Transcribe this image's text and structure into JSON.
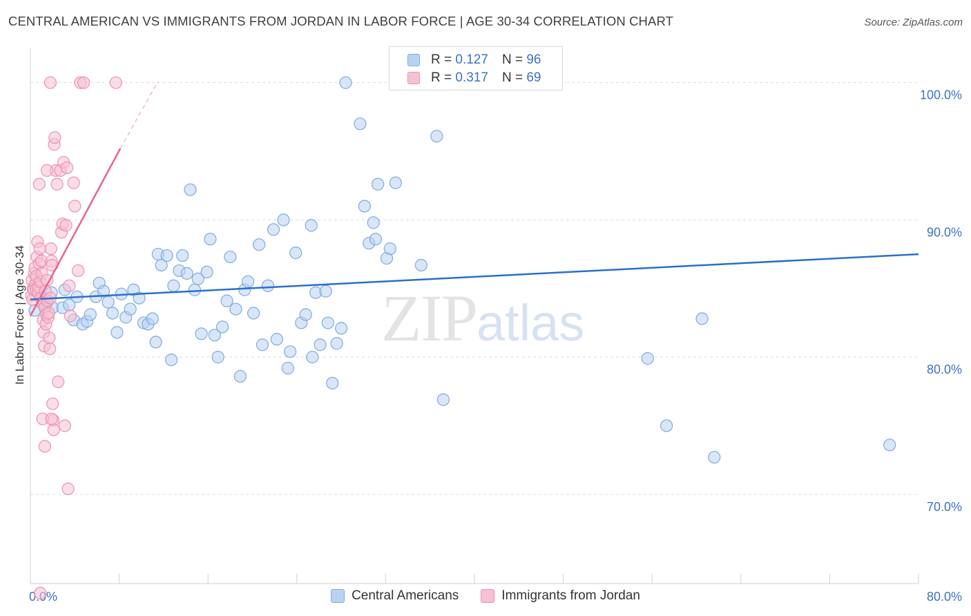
{
  "title": "CENTRAL AMERICAN VS IMMIGRANTS FROM JORDAN IN LABOR FORCE | AGE 30-34 CORRELATION CHART",
  "source": "Source: ZipAtlas.com",
  "watermark": {
    "zip": "ZIP",
    "atlas": "atlas"
  },
  "legend": {
    "rows": [
      {
        "r_label": "R =",
        "r_value": "0.127",
        "n_label": "N =",
        "n_value": "96"
      },
      {
        "r_label": "R =",
        "r_value": "0.317",
        "n_label": "N =",
        "n_value": "69"
      }
    ]
  },
  "colors": {
    "blue_fill": "#b8d2f2",
    "blue_stroke": "#7eaae0",
    "blue_line": "#2a6fcc",
    "pink_fill": "#f6c1d2",
    "pink_stroke": "#ee90b0",
    "pink_line": "#e8628f",
    "tick_text": "#3a72c4",
    "grid": "#dcdcdc"
  },
  "chart_data": {
    "type": "scatter",
    "title": "CENTRAL AMERICAN VS IMMIGRANTS FROM JORDAN IN LABOR FORCE | AGE 30-34 CORRELATION CHART",
    "xlabel": "",
    "ylabel": "In Labor Force | Age 30-34",
    "xlim": [
      0,
      80
    ],
    "ylim": [
      63.5,
      102.5
    ],
    "x_ticks": [
      {
        "value": 0,
        "label": "0.0%"
      },
      {
        "value": 80,
        "label": "80.0%"
      }
    ],
    "y_ticks": [
      {
        "value": 100,
        "label": "100.0%"
      },
      {
        "value": 90,
        "label": "90.0%"
      },
      {
        "value": 80,
        "label": "80.0%"
      },
      {
        "value": 70,
        "label": "70.0%"
      }
    ],
    "grid": true,
    "legend_position": "top-center",
    "series": [
      {
        "name": "Central Americans",
        "color": "#b8d2f2",
        "trendline": {
          "x": [
            0,
            80
          ],
          "y": [
            84.2,
            87.5
          ]
        },
        "points": [
          [
            0.4,
            83.4
          ],
          [
            0.8,
            84.5
          ],
          [
            1.1,
            84.0
          ],
          [
            1.3,
            83.7
          ],
          [
            1.5,
            84.0
          ],
          [
            1.9,
            84.7
          ],
          [
            2.0,
            83.6
          ],
          [
            2.9,
            83.6
          ],
          [
            3.1,
            84.9
          ],
          [
            3.5,
            83.8
          ],
          [
            3.9,
            82.7
          ],
          [
            4.2,
            84.4
          ],
          [
            4.7,
            82.4
          ],
          [
            5.1,
            82.6
          ],
          [
            5.4,
            83.1
          ],
          [
            5.9,
            84.4
          ],
          [
            6.2,
            85.4
          ],
          [
            6.6,
            84.8
          ],
          [
            7.0,
            84.0
          ],
          [
            7.4,
            83.2
          ],
          [
            7.8,
            81.8
          ],
          [
            8.2,
            84.6
          ],
          [
            8.6,
            82.9
          ],
          [
            9.0,
            83.5
          ],
          [
            9.3,
            84.9
          ],
          [
            9.8,
            84.3
          ],
          [
            10.2,
            82.5
          ],
          [
            10.6,
            82.4
          ],
          [
            11.0,
            82.8
          ],
          [
            11.3,
            81.1
          ],
          [
            11.5,
            87.5
          ],
          [
            11.8,
            86.7
          ],
          [
            12.3,
            87.4
          ],
          [
            12.7,
            79.8
          ],
          [
            12.9,
            85.2
          ],
          [
            13.4,
            86.3
          ],
          [
            13.7,
            87.4
          ],
          [
            14.1,
            86.1
          ],
          [
            14.4,
            92.2
          ],
          [
            14.8,
            84.9
          ],
          [
            15.1,
            85.7
          ],
          [
            15.4,
            81.7
          ],
          [
            15.9,
            86.2
          ],
          [
            16.2,
            88.6
          ],
          [
            16.6,
            81.6
          ],
          [
            16.9,
            80.0
          ],
          [
            17.3,
            82.2
          ],
          [
            17.7,
            84.1
          ],
          [
            18.0,
            87.3
          ],
          [
            18.5,
            83.5
          ],
          [
            18.9,
            78.6
          ],
          [
            19.3,
            84.9
          ],
          [
            19.6,
            85.5
          ],
          [
            20.1,
            83.2
          ],
          [
            20.6,
            88.2
          ],
          [
            20.9,
            80.9
          ],
          [
            21.4,
            85.2
          ],
          [
            21.9,
            89.3
          ],
          [
            22.2,
            81.3
          ],
          [
            22.8,
            90.0
          ],
          [
            23.2,
            79.2
          ],
          [
            23.4,
            80.4
          ],
          [
            23.9,
            87.6
          ],
          [
            24.4,
            82.5
          ],
          [
            24.8,
            83.1
          ],
          [
            25.3,
            89.6
          ],
          [
            25.4,
            80.0
          ],
          [
            25.7,
            84.7
          ],
          [
            26.1,
            80.9
          ],
          [
            26.6,
            84.8
          ],
          [
            26.8,
            82.5
          ],
          [
            27.2,
            78.1
          ],
          [
            27.6,
            81.0
          ],
          [
            28.0,
            82.1
          ],
          [
            28.4,
            100.0
          ],
          [
            29.7,
            97.0
          ],
          [
            30.1,
            91.0
          ],
          [
            30.5,
            88.3
          ],
          [
            30.9,
            89.8
          ],
          [
            31.1,
            88.6
          ],
          [
            31.3,
            92.6
          ],
          [
            32.1,
            87.2
          ],
          [
            32.4,
            87.9
          ],
          [
            32.9,
            92.7
          ],
          [
            34.6,
            100.0
          ],
          [
            35.2,
            86.7
          ],
          [
            36.6,
            96.1
          ],
          [
            37.2,
            76.9
          ],
          [
            38.4,
            100.0
          ],
          [
            41.3,
            100.0
          ],
          [
            55.6,
            79.9
          ],
          [
            57.3,
            75.0
          ],
          [
            60.5,
            82.8
          ],
          [
            61.6,
            72.7
          ],
          [
            77.4,
            73.6
          ]
        ]
      },
      {
        "name": "Immigrants from Jordan",
        "color": "#f6c1d2",
        "trendline": {
          "x": [
            0,
            8.1
          ],
          "y": [
            83.0,
            95.2
          ]
        },
        "trendline_dashed": {
          "x": [
            8.1,
            11.5
          ],
          "y": [
            95.2,
            100.1
          ]
        },
        "points": [
          [
            0.1,
            84.5
          ],
          [
            0.15,
            85.6
          ],
          [
            0.2,
            84.2
          ],
          [
            0.25,
            85.0
          ],
          [
            0.3,
            84.9
          ],
          [
            0.35,
            86.1
          ],
          [
            0.4,
            86.5
          ],
          [
            0.45,
            85.3
          ],
          [
            0.5,
            84.9
          ],
          [
            0.55,
            85.9
          ],
          [
            0.6,
            87.3
          ],
          [
            0.65,
            88.4
          ],
          [
            0.7,
            84.7
          ],
          [
            0.75,
            85.1
          ],
          [
            0.8,
            86.8
          ],
          [
            0.85,
            87.9
          ],
          [
            0.9,
            85.5
          ],
          [
            0.95,
            84.3
          ],
          [
            1.0,
            87.0
          ],
          [
            1.05,
            86.1
          ],
          [
            1.1,
            83.9
          ],
          [
            1.15,
            82.7
          ],
          [
            1.2,
            81.8
          ],
          [
            1.25,
            80.8
          ],
          [
            1.3,
            83.6
          ],
          [
            1.35,
            84.8
          ],
          [
            1.4,
            82.4
          ],
          [
            1.45,
            83.1
          ],
          [
            1.5,
            85.6
          ],
          [
            1.55,
            84.1
          ],
          [
            1.6,
            82.9
          ],
          [
            1.65,
            83.2
          ],
          [
            1.7,
            81.4
          ],
          [
            1.75,
            80.6
          ],
          [
            1.8,
            84.3
          ],
          [
            1.85,
            87.9
          ],
          [
            1.9,
            87.0
          ],
          [
            1.95,
            86.7
          ],
          [
            2.0,
            76.6
          ],
          [
            2.05,
            75.4
          ],
          [
            2.1,
            74.7
          ],
          [
            2.15,
            95.5
          ],
          [
            2.2,
            96.0
          ],
          [
            2.3,
            93.6
          ],
          [
            2.4,
            92.6
          ],
          [
            2.5,
            78.2
          ],
          [
            2.7,
            93.6
          ],
          [
            2.8,
            89.1
          ],
          [
            2.9,
            89.7
          ],
          [
            3.0,
            94.2
          ],
          [
            3.1,
            75.0
          ],
          [
            3.2,
            89.6
          ],
          [
            3.3,
            93.8
          ],
          [
            3.4,
            70.4
          ],
          [
            3.5,
            85.2
          ],
          [
            3.6,
            83.0
          ],
          [
            3.9,
            92.7
          ],
          [
            4.0,
            91.0
          ],
          [
            4.3,
            86.3
          ],
          [
            0.8,
            92.6
          ],
          [
            1.1,
            75.5
          ],
          [
            1.3,
            73.5
          ],
          [
            1.9,
            75.5
          ],
          [
            0.9,
            62.8
          ],
          [
            1.8,
            100.0
          ],
          [
            4.5,
            100.0
          ],
          [
            4.8,
            100.0
          ],
          [
            7.7,
            100.0
          ],
          [
            1.5,
            93.6
          ]
        ]
      }
    ]
  },
  "bottom_legend": {
    "items": [
      {
        "label": "Central Americans"
      },
      {
        "label": "Immigrants from Jordan"
      }
    ]
  }
}
